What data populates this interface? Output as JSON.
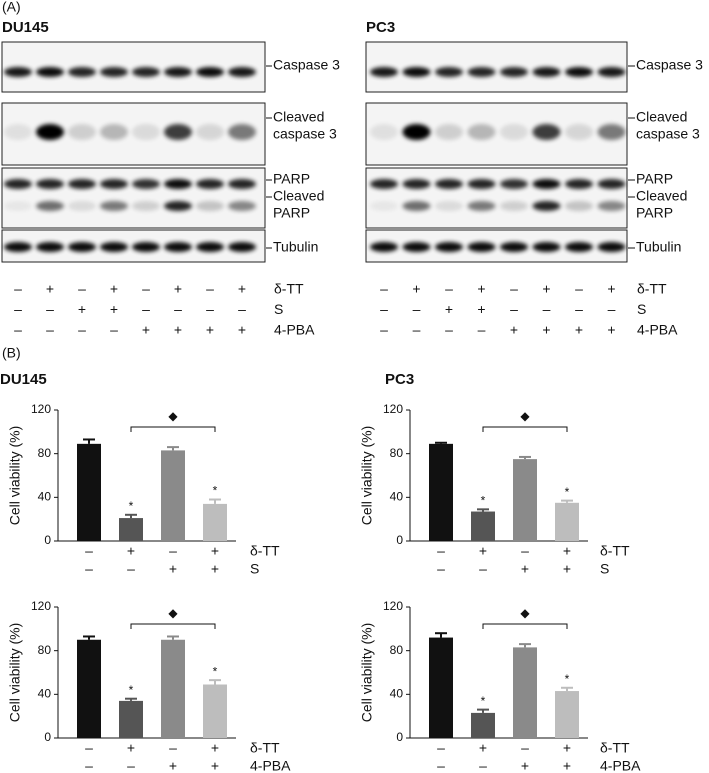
{
  "panel_a": {
    "label": "(A)",
    "blots": [
      {
        "title": "DU145",
        "bands": [
          {
            "lines": [
              "Caspase 3"
            ]
          },
          {
            "lines": [
              "Cleaved",
              "caspase 3"
            ]
          },
          {
            "lines": [
              "PARP"
            ]
          },
          {
            "lines": [
              "Cleaved",
              "PARP"
            ]
          },
          {
            "lines": [
              "Tubulin"
            ]
          }
        ],
        "treatments": [
          {
            "name": "δ-TT",
            "signs": [
              "–",
              "+",
              "–",
              "+",
              "–",
              "+",
              "–",
              "+"
            ]
          },
          {
            "name": "S",
            "signs": [
              "–",
              "–",
              "+",
              "+",
              "–",
              "–",
              "–",
              "–"
            ]
          },
          {
            "name": "4-PBA",
            "signs": [
              "–",
              "–",
              "–",
              "–",
              "+",
              "+",
              "+",
              "+"
            ]
          }
        ]
      },
      {
        "title": "PC3",
        "bands": [
          {
            "lines": [
              "Caspase 3"
            ]
          },
          {
            "lines": [
              "Cleaved",
              "caspase 3"
            ]
          },
          {
            "lines": [
              "PARP"
            ]
          },
          {
            "lines": [
              "Cleaved",
              "PARP"
            ]
          },
          {
            "lines": [
              "Tubulin"
            ]
          }
        ],
        "treatments": [
          {
            "name": "δ-TT",
            "signs": [
              "–",
              "+",
              "–",
              "+",
              "–",
              "+",
              "–",
              "+"
            ]
          },
          {
            "name": "S",
            "signs": [
              "–",
              "–",
              "+",
              "+",
              "–",
              "–",
              "–",
              "–"
            ]
          },
          {
            "name": "4-PBA",
            "signs": [
              "–",
              "–",
              "–",
              "–",
              "+",
              "+",
              "+",
              "+"
            ]
          }
        ]
      }
    ]
  },
  "panel_b": {
    "label": "(B)"
  },
  "chart_data": [
    {
      "type": "bar",
      "title": "DU145",
      "ylabel": "Cell viability (%)",
      "categories": [
        null,
        null,
        null,
        null
      ],
      "values": [
        89,
        21,
        83,
        34
      ],
      "errors": [
        4,
        3,
        3,
        4
      ],
      "colors": [
        "#111111",
        "#555555",
        "#8a8a8a",
        "#bdbdbd"
      ],
      "markers": [
        null,
        "*",
        null,
        "*"
      ],
      "bracket": "◆",
      "ylim": [
        0,
        120
      ],
      "yticks": [
        0,
        40,
        80,
        120
      ],
      "treatments": [
        {
          "name": "δ-TT",
          "signs": [
            "–",
            "+",
            "–",
            "+"
          ]
        },
        {
          "name": "S",
          "signs": [
            "–",
            "–",
            "+",
            "+"
          ]
        }
      ]
    },
    {
      "type": "bar",
      "title": "PC3",
      "ylabel": "Cell viability (%)",
      "categories": [
        null,
        null,
        null,
        null
      ],
      "values": [
        89,
        27,
        75,
        35
      ],
      "errors": [
        1,
        2,
        2,
        2
      ],
      "colors": [
        "#111111",
        "#555555",
        "#8a8a8a",
        "#bdbdbd"
      ],
      "markers": [
        null,
        "*",
        null,
        "*"
      ],
      "bracket": "◆",
      "ylim": [
        0,
        120
      ],
      "yticks": [
        0,
        40,
        80,
        120
      ],
      "treatments": [
        {
          "name": "δ-TT",
          "signs": [
            "–",
            "+",
            "–",
            "+"
          ]
        },
        {
          "name": "S",
          "signs": [
            "–",
            "–",
            "+",
            "+"
          ]
        }
      ]
    },
    {
      "type": "bar",
      "ylabel": "Cell viability (%)",
      "categories": [
        null,
        null,
        null,
        null
      ],
      "values": [
        90,
        34,
        90,
        49
      ],
      "errors": [
        3,
        2,
        3,
        4
      ],
      "colors": [
        "#111111",
        "#555555",
        "#8a8a8a",
        "#bdbdbd"
      ],
      "markers": [
        null,
        "*",
        null,
        "*"
      ],
      "bracket": "◆",
      "ylim": [
        0,
        120
      ],
      "yticks": [
        0,
        40,
        80,
        120
      ],
      "treatments": [
        {
          "name": "δ-TT",
          "signs": [
            "–",
            "+",
            "–",
            "+"
          ]
        },
        {
          "name": "4-PBA",
          "signs": [
            "–",
            "–",
            "+",
            "+"
          ]
        }
      ]
    },
    {
      "type": "bar",
      "ylabel": "Cell viability (%)",
      "categories": [
        null,
        null,
        null,
        null
      ],
      "values": [
        92,
        23,
        83,
        43
      ],
      "errors": [
        4,
        3,
        3,
        3
      ],
      "colors": [
        "#111111",
        "#555555",
        "#8a8a8a",
        "#bdbdbd"
      ],
      "markers": [
        null,
        "*",
        null,
        "*"
      ],
      "bracket": "◆",
      "ylim": [
        0,
        120
      ],
      "yticks": [
        0,
        40,
        80,
        120
      ],
      "treatments": [
        {
          "name": "δ-TT",
          "signs": [
            "–",
            "+",
            "–",
            "+"
          ]
        },
        {
          "name": "4-PBA",
          "signs": [
            "–",
            "–",
            "+",
            "+"
          ]
        }
      ]
    }
  ]
}
